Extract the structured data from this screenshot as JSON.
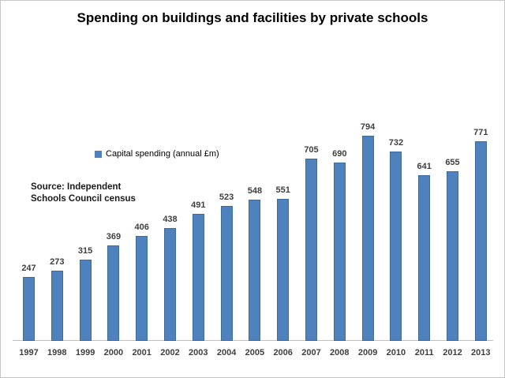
{
  "chart_data": {
    "type": "bar",
    "title": "Spending on buildings and facilities by private schools",
    "legend": [
      {
        "label": "Capital spending (annual £m)",
        "color": "#4f81bd"
      }
    ],
    "legend_position": "inside-plot-upper-left",
    "source_note": "Source: Independent\nSchools Council census",
    "categories": [
      "1997",
      "1998",
      "1999",
      "2000",
      "2001",
      "2002",
      "2003",
      "2004",
      "2005",
      "2006",
      "2007",
      "2008",
      "2009",
      "2010",
      "2011",
      "2012",
      "2013"
    ],
    "values": [
      247,
      273,
      315,
      369,
      406,
      438,
      491,
      523,
      548,
      551,
      705,
      690,
      794,
      732,
      641,
      655,
      771
    ],
    "xlabel": "",
    "ylabel": "",
    "ylim": [
      0,
      850
    ],
    "grid": false,
    "data_labels": true,
    "y_axis_visible": false,
    "colors": {
      "bar_fill": "#4f81bd",
      "bar_border": "#3f6aa0",
      "axis_line": "#bfbfbf",
      "label_text": "#3f3f3f",
      "title_text": "#000000"
    }
  }
}
